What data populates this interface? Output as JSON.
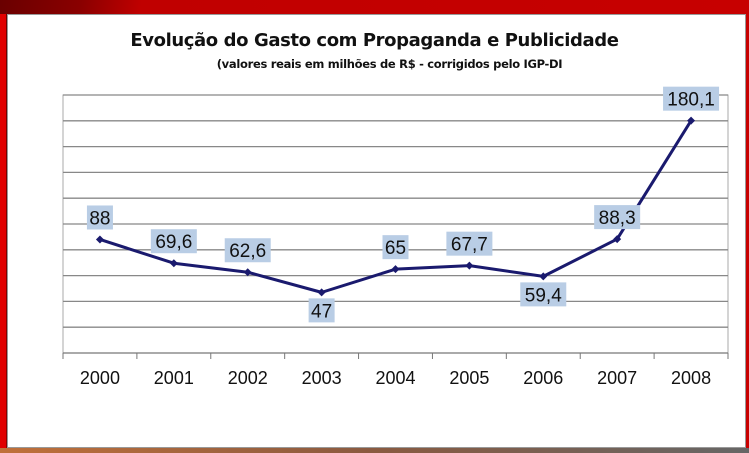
{
  "chart_data": {
    "type": "line",
    "title": "Evolução do Gasto com Propaganda e Publicidade",
    "subtitle": "(valores reais em milhões de R$ - corrigidos pelo IGP-DI",
    "categories": [
      "2000",
      "2001",
      "2002",
      "2003",
      "2004",
      "2005",
      "2006",
      "2007",
      "2008"
    ],
    "values": [
      88,
      69.6,
      62.6,
      47,
      65,
      67.7,
      59.4,
      88.3,
      180.1
    ],
    "data_labels": [
      "88",
      "69,6",
      "62,6",
      "47",
      "65",
      "67,7",
      "59,4",
      "88,3",
      "180,1"
    ],
    "label_positions": [
      "above",
      "above",
      "above",
      "below",
      "above",
      "above",
      "below",
      "above",
      "above"
    ],
    "xlabel": "",
    "ylabel": "",
    "ylim": [
      0,
      200
    ],
    "ytick_step": 20,
    "grid": true,
    "legend": "none",
    "colors": {
      "line": "#1a1a6e",
      "label_bg": "#b9cde5",
      "grid": "#888888"
    }
  }
}
